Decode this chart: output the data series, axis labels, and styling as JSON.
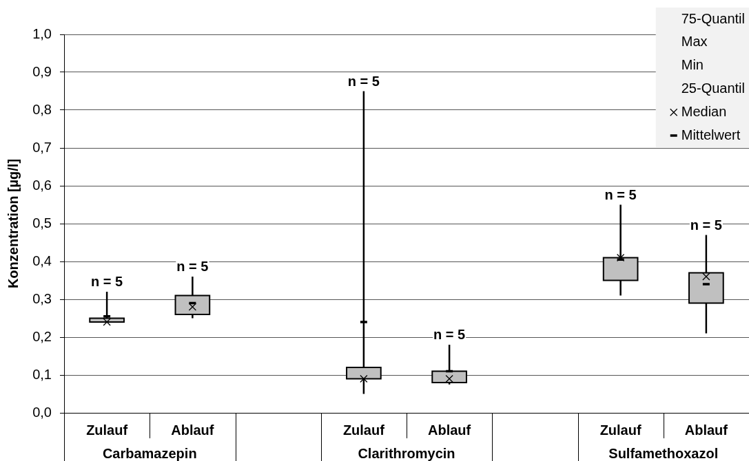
{
  "chart_data": {
    "type": "box",
    "categories": [
      "Zulauf",
      "Ablauf",
      null,
      "Zulauf",
      "Ablauf",
      null,
      "Zulauf",
      "Ablauf"
    ],
    "boxes": [
      {
        "low": 0.24,
        "q1": 0.24,
        "q3": 0.25,
        "high": 0.32
      },
      {
        "low": 0.25,
        "q1": 0.26,
        "q3": 0.31,
        "high": 0.36
      },
      null,
      {
        "low": 0.05,
        "q1": 0.09,
        "q3": 0.12,
        "high": 0.85
      },
      {
        "low": 0.075,
        "q1": 0.08,
        "q3": 0.11,
        "high": 0.18
      },
      null,
      {
        "low": 0.31,
        "q1": 0.35,
        "q3": 0.41,
        "high": 0.55
      },
      {
        "low": 0.21,
        "q1": 0.29,
        "q3": 0.37,
        "high": 0.47
      }
    ],
    "color": "#c0c0c0",
    "series": [
      {
        "name": "Median",
        "type": "scatter",
        "marker": "cross",
        "color": "#000000",
        "values": [
          0.24,
          0.28,
          null,
          0.09,
          0.09,
          null,
          0.41,
          0.36
        ]
      },
      {
        "name": "Mittelwert",
        "type": "scatter",
        "color": "#000000",
        "values": [
          0.255,
          0.29,
          null,
          0.24,
          0.11,
          null,
          0.405,
          0.34
        ]
      }
    ],
    "ylabel": "Konzentration [µg/l]",
    "ylim": [
      0,
      1
    ],
    "yticks": [
      {
        "value": 0,
        "label": "0,0"
      },
      {
        "value": 0.1,
        "label": "0,1"
      },
      {
        "value": 0.2,
        "label": "0,2"
      },
      {
        "value": 0.3,
        "label": "0,3"
      },
      {
        "value": 0.4,
        "label": "0,4"
      },
      {
        "value": 0.5,
        "label": "0,5"
      },
      {
        "value": 0.6,
        "label": "0,6"
      },
      {
        "value": 0.7,
        "label": "0,7"
      },
      {
        "value": 0.8,
        "label": "0,8"
      },
      {
        "value": 0.9,
        "label": "0,9"
      },
      {
        "value": 1,
        "label": "1,0"
      }
    ],
    "grid": "y",
    "legend": "top right",
    "annotations": [
      {
        "text": "n = 5",
        "y": 0.32
      },
      {
        "text": "n = 5",
        "y": 0.36
      },
      {
        "text": "n = 5",
        "y": 0.85
      },
      {
        "text": "n = 5",
        "y": 0.18
      },
      {
        "text": "n = 5",
        "y": 0.55
      },
      {
        "text": "n = 5",
        "y": 0.47
      },
      "Carbamazepin",
      "Clarithromycin",
      "Sulfamethoxazol",
      "75-Quantil",
      "Max",
      "Min",
      "25-Quantil"
    ]
  }
}
